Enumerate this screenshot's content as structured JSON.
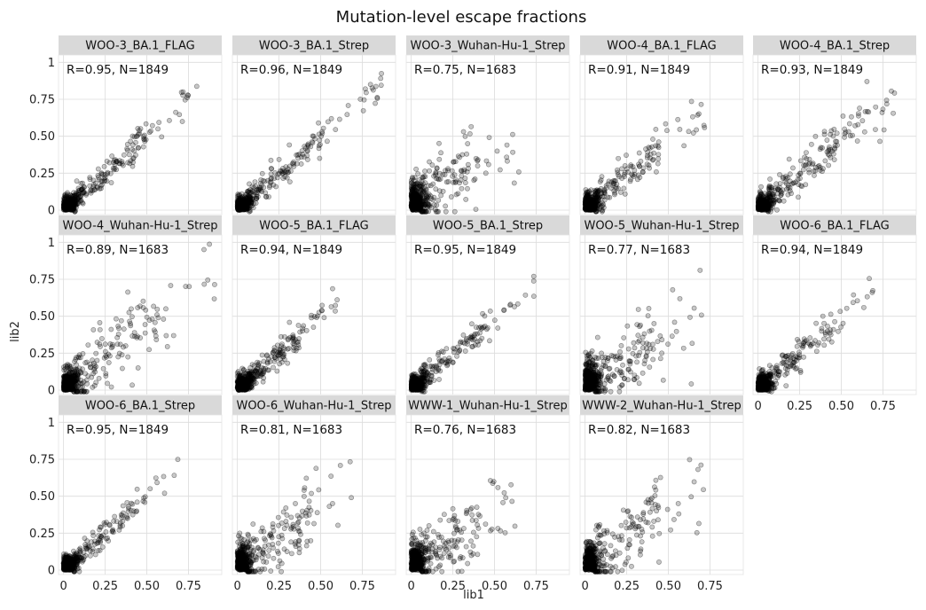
{
  "chart_data": {
    "type": "scatter",
    "title": "Mutation-level escape fractions",
    "xlabel": "lib1",
    "ylabel": "lib2",
    "xlim": [
      -0.03,
      0.95
    ],
    "ylim": [
      -0.03,
      1.05
    ],
    "x_ticks": [
      0,
      0.25,
      0.5,
      0.75
    ],
    "x_tick_labels": [
      "0",
      "0.25",
      "0.50",
      "0.75"
    ],
    "y_ticks": [
      0,
      0.25,
      0.5,
      0.75,
      1
    ],
    "y_tick_labels": [
      "0",
      "0.25",
      "0.50",
      "0.75",
      "1"
    ],
    "grid": true,
    "ncols": 5,
    "panels": [
      {
        "name": "WOO-3_BA.1_FLAG",
        "annotation": "R=0.95, N=1849",
        "r": 0.95,
        "n": 1849,
        "x_max": 0.82,
        "spread": 0.035
      },
      {
        "name": "WOO-3_BA.1_Strep",
        "annotation": "R=0.96, N=1849",
        "r": 0.96,
        "n": 1849,
        "x_max": 0.87,
        "spread": 0.04
      },
      {
        "name": "WOO-3_Wuhan-Hu-1_Strep",
        "annotation": "R=0.75, N=1683",
        "r": 0.75,
        "n": 1683,
        "x_max": 0.65,
        "spread": 0.09
      },
      {
        "name": "WOO-4_BA.1_FLAG",
        "annotation": "R=0.91, N=1849",
        "r": 0.91,
        "n": 1849,
        "x_max": 0.72,
        "spread": 0.045
      },
      {
        "name": "WOO-4_BA.1_Strep",
        "annotation": "R=0.93, N=1849",
        "r": 0.93,
        "n": 1849,
        "x_max": 0.82,
        "spread": 0.05
      },
      {
        "name": "WOO-4_Wuhan-Hu-1_Strep",
        "annotation": "R=0.89, N=1683",
        "r": 0.89,
        "n": 1683,
        "x_max": 0.93,
        "spread": 0.08
      },
      {
        "name": "WOO-5_BA.1_FLAG",
        "annotation": "R=0.94, N=1849",
        "r": 0.94,
        "n": 1849,
        "x_max": 0.6,
        "spread": 0.035
      },
      {
        "name": "WOO-5_BA.1_Strep",
        "annotation": "R=0.95, N=1849",
        "r": 0.95,
        "n": 1849,
        "x_max": 0.74,
        "spread": 0.04
      },
      {
        "name": "WOO-5_Wuhan-Hu-1_Strep",
        "annotation": "R=0.77, N=1683",
        "r": 0.77,
        "n": 1683,
        "x_max": 0.7,
        "spread": 0.08
      },
      {
        "name": "WOO-6_BA.1_FLAG",
        "annotation": "R=0.94, N=1849",
        "r": 0.94,
        "n": 1849,
        "x_max": 0.72,
        "spread": 0.045
      },
      {
        "name": "WOO-6_BA.1_Strep",
        "annotation": "R=0.95, N=1849",
        "r": 0.95,
        "n": 1849,
        "x_max": 0.72,
        "spread": 0.035
      },
      {
        "name": "WOO-6_Wuhan-Hu-1_Strep",
        "annotation": "R=0.81, N=1683",
        "r": 0.81,
        "n": 1683,
        "x_max": 0.7,
        "spread": 0.08
      },
      {
        "name": "WWW-1_Wuhan-Hu-1_Strep",
        "annotation": "R=0.76, N=1683",
        "r": 0.76,
        "n": 1683,
        "x_max": 0.66,
        "spread": 0.08
      },
      {
        "name": "WWW-2_Wuhan-Hu-1_Strep",
        "annotation": "R=0.82, N=1683",
        "r": 0.82,
        "n": 1683,
        "x_max": 0.72,
        "spread": 0.09
      }
    ]
  }
}
